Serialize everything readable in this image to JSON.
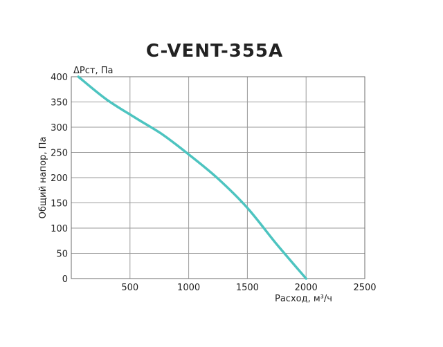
{
  "chart_data": {
    "type": "line",
    "title": "C-VENT-355A",
    "ylabel": "Общий напор, Па",
    "y_unit_label": "ΔPст, Па",
    "xlabel": "Расход, м³/ч",
    "xlim": [
      0,
      2500
    ],
    "ylim": [
      0,
      400
    ],
    "x_ticks": [
      500,
      1000,
      1500,
      2000,
      2500
    ],
    "y_ticks": [
      0,
      50,
      100,
      150,
      200,
      250,
      300,
      350,
      400
    ],
    "grid": true,
    "series": [
      {
        "color": "#4dc4c0",
        "points": [
          [
            60,
            400
          ],
          [
            300,
            355
          ],
          [
            550,
            318
          ],
          [
            780,
            285
          ],
          [
            1000,
            246
          ],
          [
            1250,
            198
          ],
          [
            1500,
            140
          ],
          [
            1750,
            68
          ],
          [
            2000,
            0
          ]
        ]
      }
    ]
  }
}
